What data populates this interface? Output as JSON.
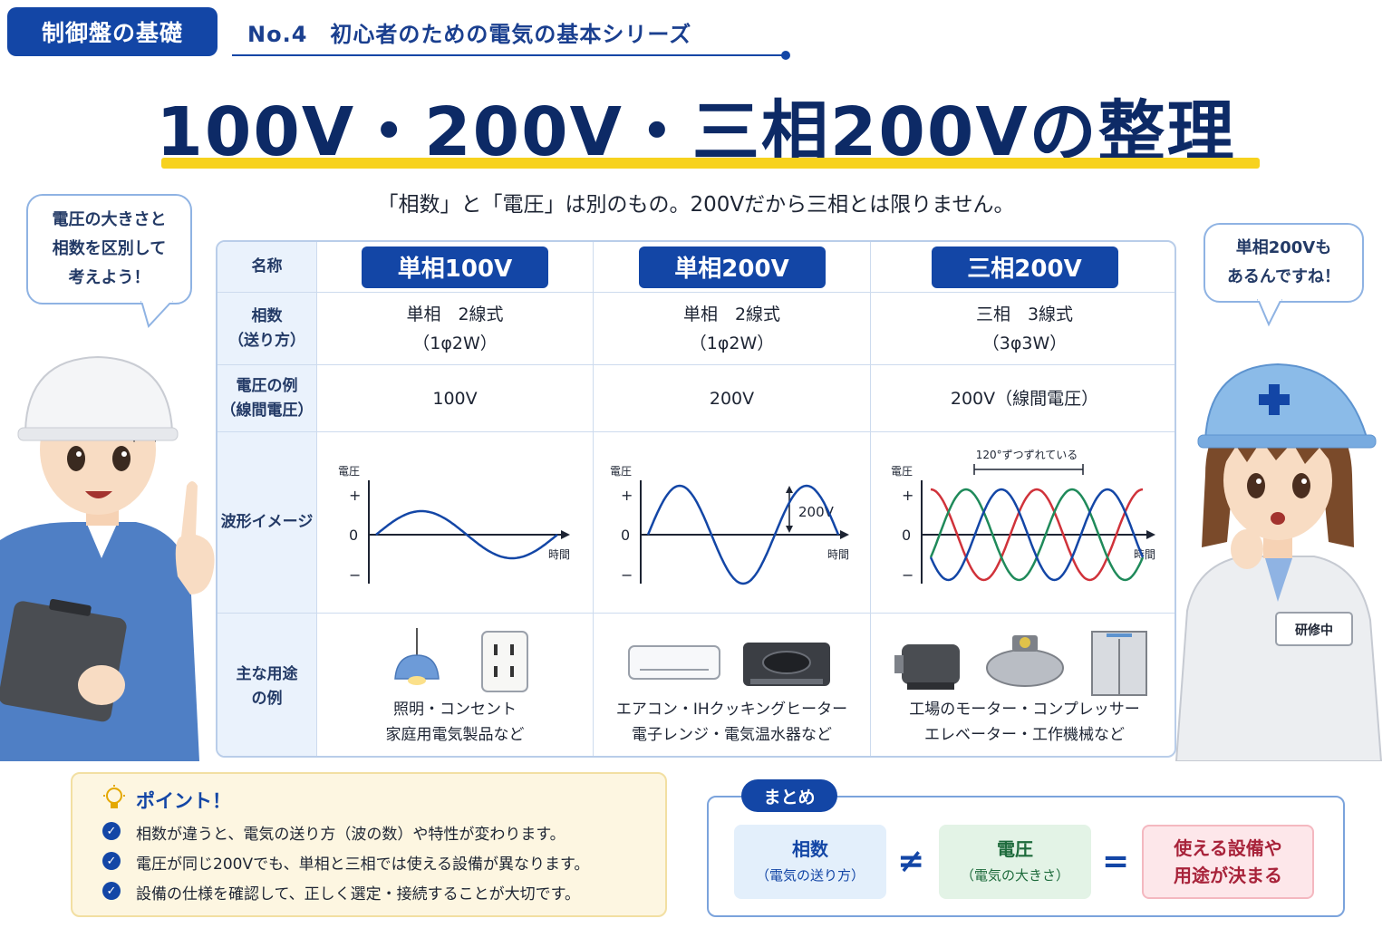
{
  "header": {
    "series_badge": "制御盤の基礎",
    "series_title": "No.4　初心者のための電気の基本シリーズ",
    "main_title": "100V・200V・三相200Vの整理",
    "subtitle": "「相数」と「電圧」は別のもの。200Vだから三相とは限りません。"
  },
  "bubbles": {
    "left": [
      "電圧の大きさと",
      "相数を区別して",
      "考えよう！"
    ],
    "right": [
      "単相200Vも",
      "あるんですね！"
    ]
  },
  "table": {
    "row_headers": {
      "name": "名称",
      "phase": [
        "相数",
        "（送り方）"
      ],
      "voltage": [
        "電圧の例",
        "（線間電圧）"
      ],
      "waveform": "波形イメージ",
      "usage": [
        "主な用途",
        "の例"
      ]
    },
    "columns": [
      {
        "name": "単相100V",
        "phase": [
          "単相　2線式",
          "（1φ2W）"
        ],
        "voltage": "100V",
        "usage": [
          "照明・コンセント",
          "家庭用電気製品など"
        ]
      },
      {
        "name": "単相200V",
        "phase": [
          "単相　2線式",
          "（1φ2W）"
        ],
        "voltage": "200V",
        "usage": [
          "エアコン・IHクッキングヒーター",
          "電子レンジ・電気温水器など"
        ]
      },
      {
        "name": "三相200V",
        "phase": [
          "三相　3線式",
          "（3φ3W）"
        ],
        "voltage": "200V（線間電圧）",
        "usage": [
          "工場のモーター・コンプレッサー",
          "エレベーター・工作機械など"
        ]
      }
    ],
    "wave_labels": {
      "y_axis": "電圧",
      "plus": "+",
      "zero": "0",
      "minus": "−",
      "x_axis": "時間",
      "amplitude": "200V",
      "phase_shift": "120°ずつずれている"
    },
    "wave_colors": {
      "single": "#1346a6",
      "phase_red": "#d0323a",
      "phase_blue": "#1346a6",
      "phase_green": "#1f8a5a"
    }
  },
  "point": {
    "title": "ポイント！",
    "items": [
      "相数が違うと、電気の送り方（波の数）や特性が変わります。",
      "電圧が同じ200Vでも、単相と三相では使える設備が異なります。",
      "設備の仕様を確認して、正しく選定・接続することが大切です。"
    ]
  },
  "summary": {
    "badge": "まとめ",
    "card1": {
      "main": "相数",
      "sub": "（電気の送り方）"
    },
    "op1": "≠",
    "card2": {
      "main": "電圧",
      "sub": "（電気の大きさ）"
    },
    "op2": "=",
    "card3": {
      "main": "使える設備や",
      "sub": "用途が決まる"
    }
  },
  "badges": {
    "trainee": "研修中"
  },
  "colors": {
    "brand": "#1346a6",
    "title_text": "#0d2a66",
    "underline": "#f7d21e"
  }
}
